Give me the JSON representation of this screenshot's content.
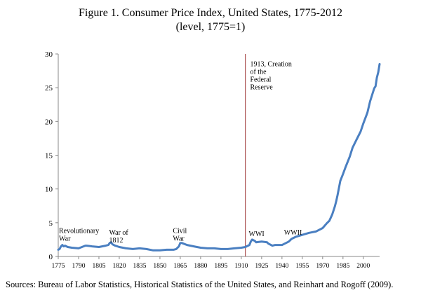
{
  "title_line1": "Figure 1. Consumer Price Index, United States, 1775-2012",
  "title_line2": "(level, 1775=1)",
  "source": "Sources: Bureau of Labor Statistics, Historical Statistics of the United States, and Reinhart and Rogoff (2009).",
  "colors": {
    "line": "#4a7fc1",
    "marker_line": "#9b2d2d",
    "axis": "#888888"
  },
  "chart_data": {
    "type": "line",
    "title": "Figure 1. Consumer Price Index, United States, 1775-2012",
    "subtitle": "(level, 1775=1)",
    "xlim": [
      1775,
      2012
    ],
    "ylim": [
      0,
      30
    ],
    "yticks": [
      0,
      5,
      10,
      15,
      20,
      25,
      30
    ],
    "xticks": [
      1775,
      1790,
      1805,
      1820,
      1835,
      1850,
      1865,
      1880,
      1895,
      1910,
      1925,
      1940,
      1955,
      1970,
      1985,
      2000
    ],
    "grid": false,
    "series": [
      {
        "x": [
          1775,
          1776,
          1777,
          1778,
          1779,
          1780,
          1782,
          1785,
          1790,
          1795,
          1796,
          1800,
          1805,
          1810,
          1812,
          1813,
          1814,
          1815,
          1817,
          1820,
          1825,
          1830,
          1835,
          1840,
          1845,
          1850,
          1855,
          1860,
          1862,
          1864,
          1865,
          1866,
          1870,
          1875,
          1880,
          1885,
          1890,
          1895,
          1900,
          1905,
          1910,
          1913,
          1916,
          1917,
          1918,
          1919,
          1920,
          1921,
          1925,
          1929,
          1930,
          1933,
          1935,
          1940,
          1941,
          1945,
          1947,
          1950,
          1955,
          1960,
          1965,
          1970,
          1973,
          1975,
          1977,
          1979,
          1980,
          1981,
          1983,
          1985,
          1987,
          1990,
          1992,
          1995,
          1998,
          2000,
          2003,
          2005,
          2008,
          2009,
          2010,
          2011,
          2012
        ],
        "y": [
          1.0,
          1.1,
          1.5,
          1.7,
          1.5,
          1.6,
          1.4,
          1.3,
          1.2,
          1.6,
          1.6,
          1.5,
          1.4,
          1.6,
          1.7,
          2.0,
          2.1,
          1.8,
          1.6,
          1.4,
          1.2,
          1.1,
          1.2,
          1.1,
          0.9,
          0.9,
          1.0,
          1.0,
          1.1,
          1.5,
          2.0,
          2.0,
          1.7,
          1.5,
          1.3,
          1.2,
          1.2,
          1.1,
          1.1,
          1.2,
          1.3,
          1.4,
          1.7,
          2.2,
          2.5,
          2.4,
          2.3,
          2.1,
          2.2,
          2.1,
          1.9,
          1.6,
          1.7,
          1.7,
          1.8,
          2.2,
          2.6,
          2.9,
          3.2,
          3.5,
          3.7,
          4.2,
          4.9,
          5.3,
          6.2,
          7.4,
          8.2,
          9.1,
          11.2,
          12.2,
          13.3,
          14.8,
          16.1,
          17.3,
          18.5,
          19.7,
          21.3,
          23.0,
          24.9,
          25.2,
          26.5,
          27.3,
          28.5
        ]
      }
    ],
    "annotations": [
      {
        "lines": [
          "Revolutionary",
          "War"
        ],
        "x": 1775,
        "y": 3.5
      },
      {
        "lines": [
          "War of",
          "1812"
        ],
        "x": 1812,
        "y": 3.2
      },
      {
        "lines": [
          "Civil",
          "War"
        ],
        "x": 1859,
        "y": 3.5
      },
      {
        "lines": [
          "WWI"
        ],
        "x": 1915,
        "y": 3.0
      },
      {
        "lines": [
          "WWII"
        ],
        "x": 1941,
        "y": 3.2
      },
      {
        "lines": [
          "1913, Creation",
          "of the",
          "Federal",
          "Reserve"
        ],
        "x": 1916,
        "y": 28.2
      }
    ],
    "vline": {
      "x": 1913
    }
  }
}
